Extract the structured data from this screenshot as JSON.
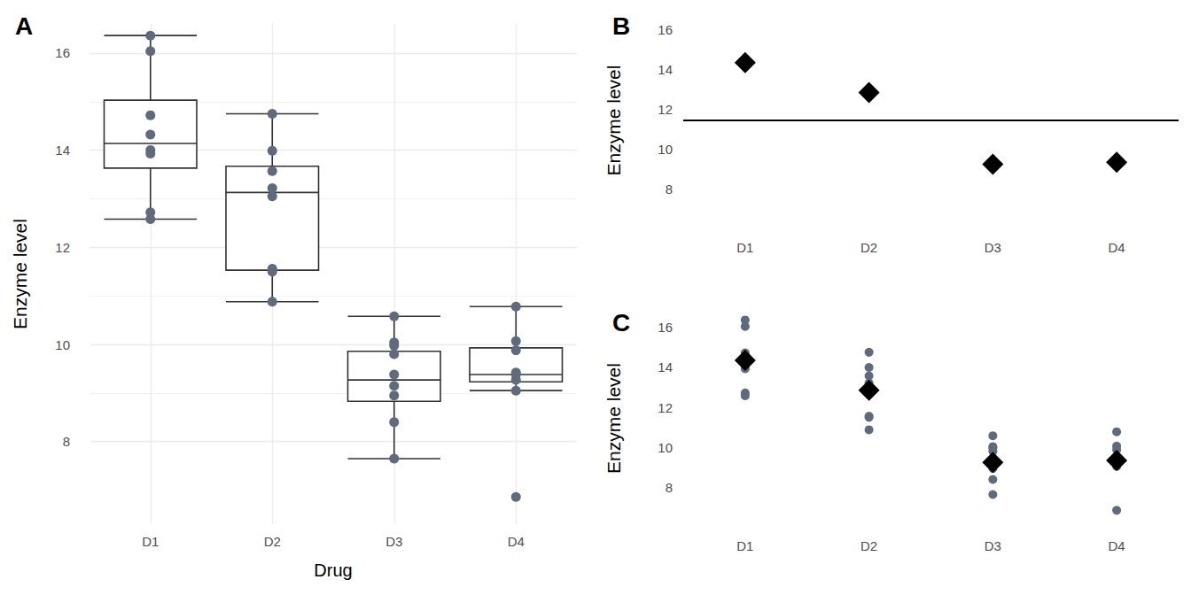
{
  "chart_data": [
    {
      "type": "boxplot",
      "title": "A",
      "x_label": "Drug",
      "y_label": "Enzyme level",
      "categories": [
        "D1",
        "D2",
        "D3",
        "D4"
      ],
      "boxes": [
        [
          12.58,
          13.63,
          14.14,
          15.03,
          16.36
        ],
        [
          10.88,
          11.53,
          13.13,
          13.67,
          14.75
        ],
        [
          7.65,
          8.83,
          9.27,
          9.86,
          10.58
        ],
        [
          9.05,
          9.23,
          9.38,
          9.93,
          10.78
        ]
      ],
      "points": [
        [
          16.36,
          16.04,
          14.72,
          14.32,
          14.0,
          13.93,
          12.72,
          12.58
        ],
        [
          14.75,
          13.99,
          13.57,
          13.22,
          13.05,
          11.56,
          11.5,
          10.88
        ],
        [
          10.58,
          10.04,
          9.98,
          9.8,
          9.38,
          9.15,
          8.95,
          8.4,
          7.65
        ],
        [
          10.78,
          10.07,
          9.88,
          9.42,
          9.38,
          9.27,
          9.05,
          6.86
        ]
      ],
      "marker": "circle",
      "color": "#5f6b7d",
      "ylim": [
        6.3,
        16.6
      ],
      "yticks": [
        8,
        10,
        12,
        14,
        16
      ],
      "grid": true
    },
    {
      "type": "scatter",
      "title": "B",
      "y_label": "Enzyme level",
      "categories": [
        "D1",
        "D2",
        "D3",
        "D4"
      ],
      "values": [
        14.35,
        12.85,
        9.25,
        9.35
      ],
      "marker": "diamond",
      "color": "#000000",
      "reference_line": 11.47,
      "ylim": [
        6.3,
        16.6
      ],
      "yticks": [
        8,
        10,
        12,
        14,
        16
      ],
      "grid": false
    },
    {
      "type": "scatter",
      "title": "C",
      "y_label": "Enzyme level",
      "categories": [
        "D1",
        "D2",
        "D3",
        "D4"
      ],
      "points": [
        [
          16.36,
          16.04,
          14.72,
          14.32,
          14.0,
          13.93,
          12.72,
          12.58
        ],
        [
          14.75,
          13.99,
          13.57,
          13.22,
          13.05,
          11.56,
          11.5,
          10.88
        ],
        [
          10.58,
          10.04,
          9.98,
          9.8,
          9.38,
          9.15,
          8.95,
          8.4,
          7.65
        ],
        [
          10.78,
          10.07,
          9.88,
          9.42,
          9.38,
          9.27,
          9.05,
          6.86
        ]
      ],
      "values": [
        14.35,
        12.85,
        9.25,
        9.35
      ],
      "series": [
        {
          "marker": "circle",
          "color": "#5f6b7d"
        },
        {
          "marker": "diamond",
          "color": "#000000"
        }
      ],
      "ylim": [
        6.3,
        16.6
      ],
      "yticks": [
        8,
        10,
        12,
        14,
        16
      ],
      "grid": false
    }
  ]
}
